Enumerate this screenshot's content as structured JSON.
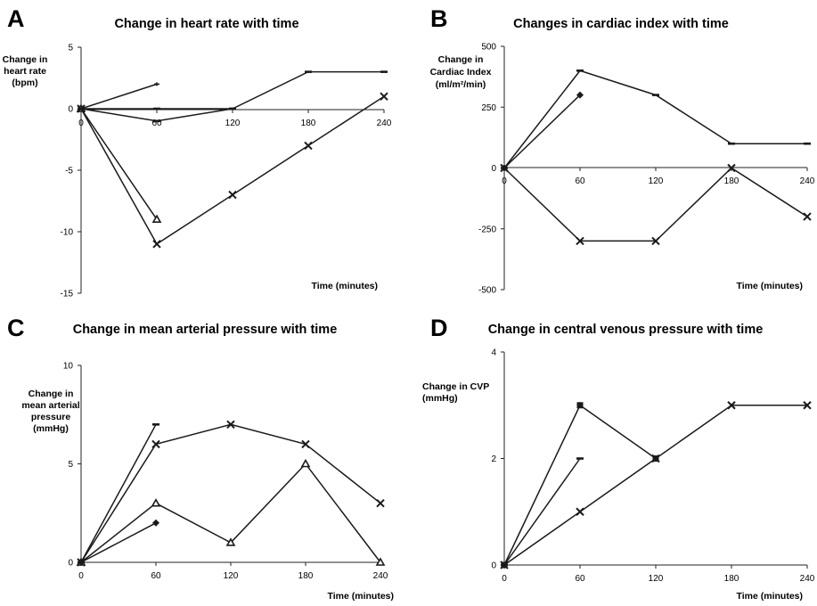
{
  "chart_data": [
    {
      "type": "line",
      "letter": "A",
      "title": "Change in heart rate with time",
      "ylabel": [
        "Change in",
        "heart rate",
        "(bpm)"
      ],
      "xlabel": "Time (minutes)",
      "x_ticks": [
        0,
        60,
        120,
        180,
        240
      ],
      "y_ticks": [
        5,
        0,
        -5,
        -10,
        -15
      ],
      "ylim": [
        -15,
        5
      ],
      "xlim": [
        0,
        240
      ],
      "series": [
        {
          "marker": "plus",
          "points": [
            [
              0,
              0
            ],
            [
              60,
              2
            ]
          ]
        },
        {
          "marker": "dash",
          "points": [
            [
              0,
              0
            ],
            [
              60,
              0
            ],
            [
              120,
              0
            ],
            [
              180,
              3
            ],
            [
              240,
              3
            ]
          ]
        },
        {
          "marker": "dash",
          "points": [
            [
              0,
              0
            ],
            [
              60,
              -1
            ],
            [
              120,
              0
            ]
          ]
        },
        {
          "marker": "triangle",
          "points": [
            [
              0,
              0
            ],
            [
              60,
              -9
            ]
          ]
        },
        {
          "marker": "x",
          "points": [
            [
              0,
              0
            ],
            [
              60,
              -11
            ],
            [
              120,
              -7
            ],
            [
              180,
              -3
            ],
            [
              240,
              1
            ]
          ]
        }
      ]
    },
    {
      "type": "line",
      "letter": "B",
      "title": "Changes in cardiac index with time",
      "ylabel": [
        "Change in",
        "Cardiac Index",
        "(ml/m²/min)"
      ],
      "xlabel": "Time (minutes)",
      "x_ticks": [
        0,
        60,
        120,
        180,
        240
      ],
      "y_ticks": [
        500,
        250,
        0,
        -250,
        -500
      ],
      "ylim": [
        -500,
        500
      ],
      "xlim": [
        0,
        240
      ],
      "series": [
        {
          "marker": "dash",
          "points": [
            [
              0,
              0
            ],
            [
              60,
              400
            ],
            [
              120,
              300
            ],
            [
              180,
              100
            ],
            [
              240,
              100
            ]
          ]
        },
        {
          "marker": "diamond",
          "points": [
            [
              0,
              0
            ],
            [
              60,
              300
            ]
          ]
        },
        {
          "marker": "x",
          "points": [
            [
              0,
              0
            ],
            [
              60,
              -300
            ],
            [
              120,
              -300
            ],
            [
              180,
              0
            ],
            [
              240,
              -200
            ]
          ]
        }
      ]
    },
    {
      "type": "line",
      "letter": "C",
      "title": "Change in mean arterial pressure with time",
      "ylabel": [
        "Change in",
        "mean arterial",
        "pressure",
        "(mmHg)"
      ],
      "xlabel": "Time (minutes)",
      "x_ticks": [
        0,
        60,
        120,
        180,
        240
      ],
      "y_ticks": [
        10,
        5,
        0
      ],
      "ylim": [
        0,
        10
      ],
      "xlim": [
        0,
        240
      ],
      "series": [
        {
          "marker": "dash",
          "points": [
            [
              0,
              0
            ],
            [
              60,
              7
            ]
          ]
        },
        {
          "marker": "x",
          "points": [
            [
              0,
              0
            ],
            [
              60,
              6
            ],
            [
              120,
              7
            ],
            [
              180,
              6
            ],
            [
              240,
              3
            ]
          ]
        },
        {
          "marker": "triangle",
          "points": [
            [
              0,
              0
            ],
            [
              60,
              3
            ],
            [
              120,
              1
            ],
            [
              180,
              5
            ],
            [
              240,
              0
            ]
          ]
        },
        {
          "marker": "diamond",
          "points": [
            [
              0,
              0
            ],
            [
              60,
              2
            ]
          ]
        }
      ]
    },
    {
      "type": "line",
      "letter": "D",
      "title": "Change in central venous pressure with time",
      "ylabel": [
        "Change in CVP",
        "(mmHg)"
      ],
      "xlabel": "Time (minutes)",
      "x_ticks": [
        0,
        60,
        120,
        180,
        240
      ],
      "y_ticks": [
        4,
        2,
        0
      ],
      "ylim": [
        0,
        4
      ],
      "xlim": [
        0,
        240
      ],
      "series": [
        {
          "marker": "square",
          "points": [
            [
              0,
              0
            ],
            [
              60,
              3
            ],
            [
              120,
              2
            ]
          ]
        },
        {
          "marker": "dash",
          "points": [
            [
              0,
              0
            ],
            [
              60,
              2
            ]
          ]
        },
        {
          "marker": "x",
          "points": [
            [
              0,
              0
            ],
            [
              60,
              1
            ],
            [
              120,
              2
            ],
            [
              180,
              3
            ],
            [
              240,
              3
            ]
          ]
        }
      ]
    }
  ]
}
